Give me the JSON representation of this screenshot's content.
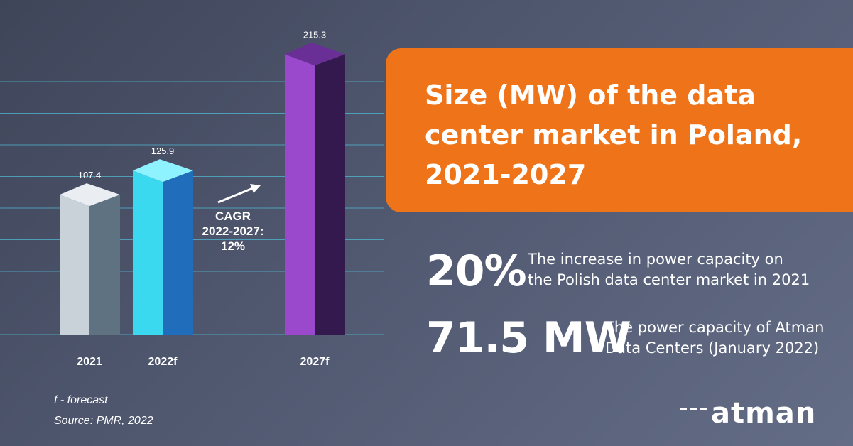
{
  "chart_data": {
    "type": "bar",
    "title": "Size (MW) of the data center market in Poland, 2021-2027",
    "categories": [
      "2021",
      "2022f",
      "2027f"
    ],
    "values": [
      107.4,
      125.9,
      215.3
    ],
    "value_labels": [
      "107.4",
      "125.9",
      "215.3"
    ],
    "ylim": [
      0,
      240
    ],
    "grid": true,
    "legend": "none",
    "annotation": {
      "lines": [
        "CAGR",
        "2022-2027:",
        "12%"
      ]
    },
    "colors": {
      "front": [
        "#c9d1d9",
        "#3ad9f0",
        "#9a48cc"
      ],
      "side": [
        "#5f7282",
        "#1f6dbb",
        "#34194f"
      ],
      "top": [
        "#eaeef2",
        "#8ff2ff",
        "#6a2f97"
      ]
    }
  },
  "stats": [
    {
      "value": "20%",
      "description_line1": "The increase in power capacity on",
      "description_line2": "the Polish data center market in 2021"
    },
    {
      "value": "71.5 MW",
      "description_line1": "The power capacity of Atman",
      "description_line2": "Data Centers (January 2022)"
    }
  ],
  "footnotes": {
    "forecast": "f - forecast",
    "source": "Source: PMR, 2022"
  },
  "logo": {
    "text": "atman"
  },
  "colors": {
    "title_box": "#ef7318",
    "gridline": "#4fb8d1",
    "text": "#ffffff"
  }
}
